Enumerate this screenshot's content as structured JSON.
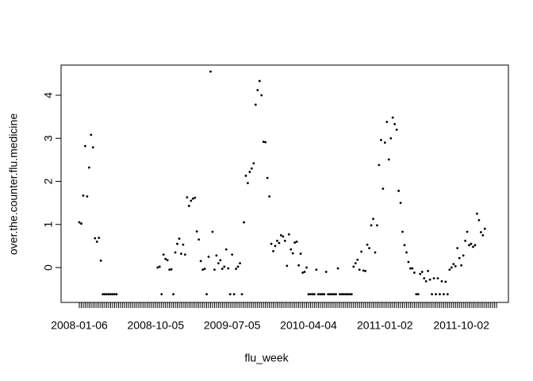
{
  "chart_data": {
    "type": "scatter",
    "x_label": "flu_week",
    "y_label": "over.the.counter.flu.medicine",
    "categories": [
      "2008-01-06",
      null,
      null,
      null,
      null,
      null,
      null,
      null,
      null,
      null,
      null,
      null,
      null,
      null,
      null,
      null,
      null,
      null,
      null,
      null,
      null,
      null,
      null,
      null,
      null,
      null,
      null,
      null,
      null,
      null,
      null,
      null,
      null,
      null,
      null,
      null,
      null,
      null,
      null,
      "2008-10-05",
      null,
      null,
      null,
      null,
      null,
      null,
      null,
      null,
      null,
      null,
      null,
      null,
      null,
      null,
      null,
      null,
      null,
      null,
      null,
      null,
      null,
      null,
      null,
      null,
      null,
      null,
      null,
      null,
      null,
      null,
      null,
      null,
      null,
      null,
      null,
      null,
      null,
      null,
      "2009-07-05",
      null,
      null,
      null,
      null,
      null,
      null,
      null,
      null,
      null,
      null,
      null,
      null,
      null,
      null,
      null,
      null,
      null,
      null,
      null,
      null,
      null,
      null,
      null,
      null,
      null,
      null,
      null,
      null,
      null,
      null,
      null,
      null,
      null,
      null,
      null,
      null,
      null,
      null,
      "2010-04-04",
      null,
      null,
      null,
      null,
      null,
      null,
      null,
      null,
      null,
      null,
      null,
      null,
      null,
      null,
      null,
      null,
      null,
      null,
      null,
      null,
      null,
      null,
      null,
      null,
      null,
      null,
      null,
      null,
      null,
      null,
      null,
      null,
      null,
      null,
      null,
      null,
      null,
      null,
      "2011-01-02",
      null,
      null,
      null,
      null,
      null,
      null,
      null,
      null,
      null,
      null,
      null,
      null,
      null,
      null,
      null,
      null,
      null,
      null,
      null,
      null,
      null,
      null,
      null,
      null,
      null,
      null,
      null,
      null,
      null,
      null,
      null,
      null,
      null,
      null,
      null,
      null,
      null,
      null,
      "2011-10-02",
      null,
      null,
      null,
      null,
      null,
      null,
      null,
      null,
      null,
      null,
      null,
      null,
      null,
      null,
      null,
      null,
      null,
      null
    ],
    "values": [
      1.05,
      1.02,
      1.67,
      2.82,
      1.65,
      2.32,
      3.08,
      2.79,
      0.68,
      0.6,
      0.69,
      0.16,
      -0.62,
      -0.62,
      -0.62,
      -0.62,
      -0.62,
      -0.62,
      -0.62,
      -0.62,
      null,
      null,
      null,
      null,
      null,
      null,
      null,
      null,
      null,
      null,
      null,
      null,
      null,
      null,
      null,
      null,
      null,
      null,
      null,
      null,
      0.0,
      0.02,
      -0.62,
      0.3,
      0.2,
      0.17,
      -0.05,
      -0.04,
      -0.62,
      0.35,
      0.55,
      0.67,
      0.32,
      0.53,
      0.3,
      1.63,
      1.43,
      1.55,
      1.6,
      1.62,
      0.84,
      0.65,
      0.15,
      -0.05,
      -0.03,
      -0.62,
      0.25,
      4.55,
      0.83,
      -0.05,
      0.28,
      0.1,
      0.17,
      -0.03,
      0.02,
      0.42,
      -0.02,
      -0.62,
      0.3,
      -0.62,
      -0.03,
      0.02,
      0.1,
      -0.62,
      1.05,
      2.13,
      1.96,
      2.22,
      2.3,
      2.42,
      3.78,
      4.12,
      4.33,
      4.0,
      2.92,
      2.91,
      2.08,
      1.65,
      0.55,
      0.38,
      0.5,
      0.62,
      0.57,
      0.75,
      0.72,
      0.62,
      0.04,
      0.77,
      0.42,
      0.33,
      0.58,
      0.6,
      0.05,
      0.32,
      -0.12,
      -0.1,
      0.0,
      -0.62,
      -0.62,
      -0.62,
      -0.62,
      -0.05,
      -0.62,
      -0.62,
      -0.62,
      -0.62,
      -0.1,
      -0.62,
      -0.62,
      -0.62,
      -0.62,
      -0.62,
      -0.02,
      -0.62,
      -0.62,
      -0.62,
      -0.62,
      -0.62,
      -0.62,
      -0.62,
      0.02,
      0.1,
      0.18,
      -0.05,
      0.37,
      -0.07,
      -0.08,
      0.53,
      0.45,
      0.98,
      1.13,
      0.35,
      0.98,
      2.38,
      2.96,
      1.83,
      2.9,
      3.38,
      2.51,
      3.0,
      3.48,
      3.33,
      3.2,
      1.78,
      1.5,
      0.83,
      0.52,
      0.35,
      0.13,
      -0.02,
      -0.02,
      -0.12,
      -0.62,
      -0.62,
      -0.15,
      -0.1,
      -0.25,
      -0.32,
      -0.08,
      -0.28,
      -0.62,
      -0.25,
      -0.62,
      -0.25,
      -0.62,
      -0.32,
      -0.62,
      -0.33,
      -0.62,
      -0.05,
      0.0,
      0.08,
      0.03,
      0.45,
      0.22,
      0.05,
      0.28,
      0.62,
      0.83,
      0.52,
      0.55,
      0.48,
      0.52,
      1.25,
      1.1,
      0.82,
      0.75,
      0.9,
      null,
      null,
      null,
      null,
      null,
      null
    ],
    "color": "#000000",
    "ylim": [
      -0.81,
      4.7
    ],
    "yticks": [
      0,
      1,
      2,
      3,
      4
    ]
  }
}
